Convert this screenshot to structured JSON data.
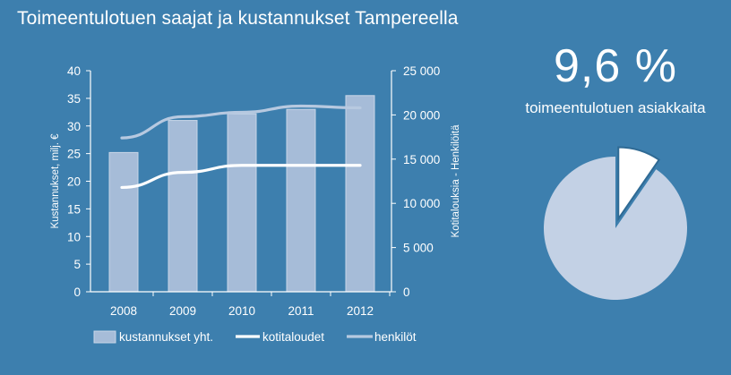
{
  "title": "Toimeentulotuen saajat ja kustannukset Tampereella",
  "big_stat": {
    "value": "9,6 %",
    "caption": "toimeentulotuen asiakkaita",
    "fraction": 0.096
  },
  "colors": {
    "background": "#3d7fae",
    "bar": "#a6bcd8",
    "bar_edge": "#c8d6e8",
    "kotitaloudet": "#ffffff",
    "henkilot": "#b7c9e0",
    "pie_main": "#c3d1e5",
    "pie_slice": "#ffffff"
  },
  "chart_data": {
    "type": "bar",
    "categories": [
      "2008",
      "2009",
      "2010",
      "2011",
      "2012"
    ],
    "series": [
      {
        "name": "kustannukset yht.",
        "type": "bar",
        "axis": "left",
        "values": [
          25.2,
          31.0,
          32.2,
          33.0,
          35.5
        ]
      },
      {
        "name": "kotitaloudet",
        "type": "line",
        "axis": "right",
        "values": [
          11800,
          13500,
          14300,
          14300,
          14300
        ]
      },
      {
        "name": "henkilöt",
        "type": "line",
        "axis": "right",
        "values": [
          17400,
          19800,
          20300,
          21000,
          20800
        ]
      }
    ],
    "ylabel": "Kustannukset, milj. €",
    "y2label": "Kotitalouksia - Henkilöitä",
    "ylim": [
      0,
      40
    ],
    "y2lim": [
      0,
      25000
    ],
    "yticks": [
      "0",
      "5",
      "10",
      "15",
      "20",
      "25",
      "30",
      "35",
      "40"
    ],
    "y2ticks": [
      "0",
      "5 000",
      "10 000",
      "15 000",
      "20 000",
      "25 000"
    ],
    "legend_position": "bottom",
    "grid": false
  }
}
